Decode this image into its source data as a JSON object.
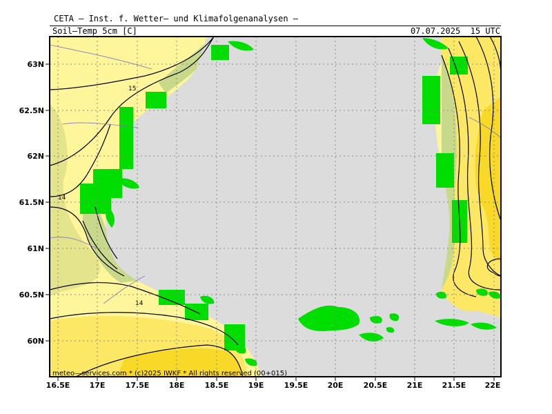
{
  "header": {
    "title": "CETA — Inst. f. Wetter— und Klimafolgenanalysen —",
    "parameter": "Soil—Temp 5cm [C]",
    "valid_time": "07.07.2025  15 UTC"
  },
  "map": {
    "lat_range": [
      59.7,
      63.3
    ],
    "lon_range": [
      16.5,
      22.0
    ],
    "lat_ticks": [
      "63N",
      "62.5N",
      "62N",
      "61.5N",
      "61N",
      "60.5N",
      "60N"
    ],
    "lon_ticks": [
      "16.5E",
      "17E",
      "17.5E",
      "18E",
      "18.5E",
      "19E",
      "19.5E",
      "20E",
      "20.5E",
      "21E",
      "21.5E",
      "22E"
    ],
    "contour_labels": [
      "15",
      "14",
      "14"
    ],
    "colors": {
      "sea": "#dcdcdc",
      "land_light": "#fff59a",
      "land_mid": "#fde866",
      "land_warm": "#f9d928",
      "land_cool": "#e3e48c",
      "land_cooler": "#c9d98c",
      "coast_green": "#00dd00",
      "contour": "#000000",
      "grid": "#888888",
      "border": "#555555"
    }
  },
  "footer": {
    "credit": "meteo—services.com * (c)2025 IWKF * All rights reserved (00+015)"
  }
}
